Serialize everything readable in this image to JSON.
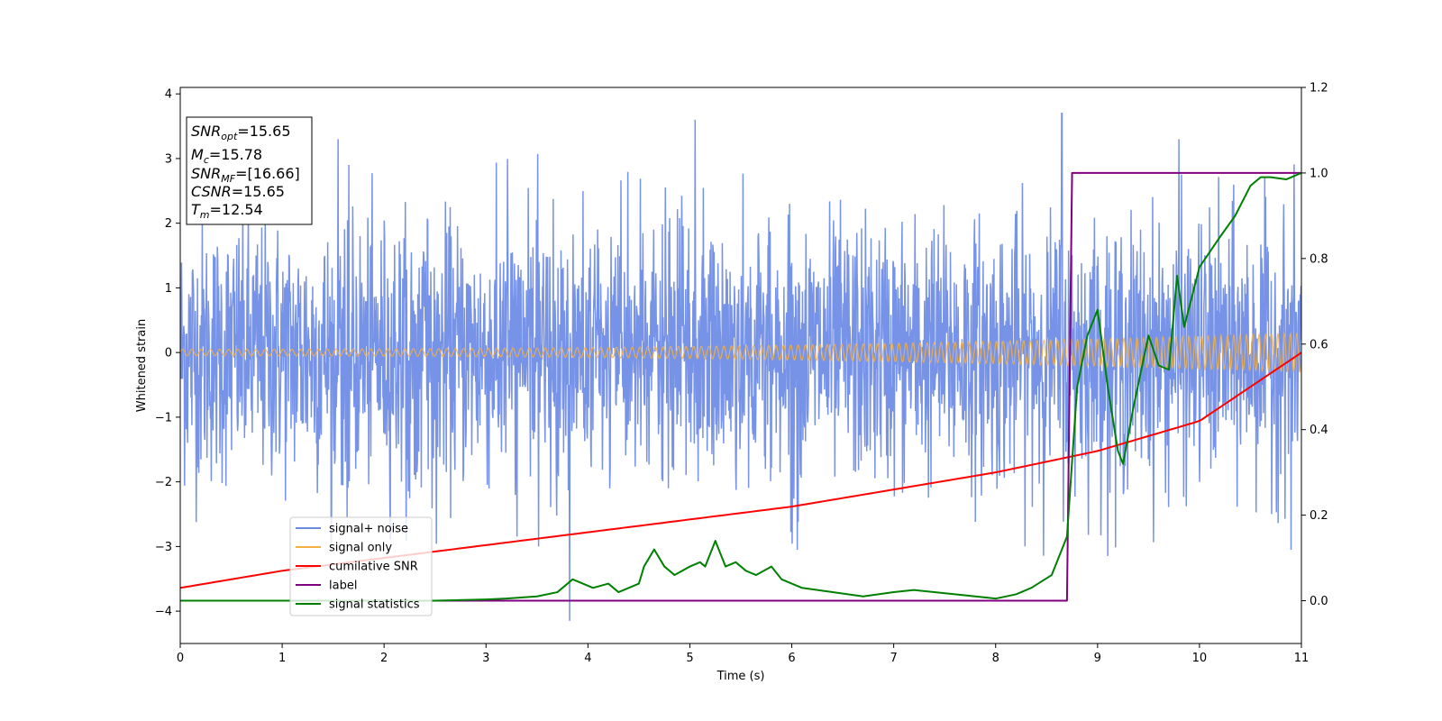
{
  "chart_data": {
    "type": "line",
    "xlabel": "Time (s)",
    "ylabel": "Whitened strain",
    "xlim": [
      0,
      11
    ],
    "ylim_left": [
      -4.5,
      4.1
    ],
    "ylim_right": [
      -0.1,
      1.2
    ],
    "x_ticks": [
      "0",
      "1",
      "2",
      "3",
      "4",
      "5",
      "6",
      "7",
      "8",
      "9",
      "10",
      "11"
    ],
    "y_ticks_left": [
      "4",
      "3",
      "2",
      "1",
      "0",
      "−1",
      "−2",
      "−3",
      "−4"
    ],
    "y_ticks_right": [
      "1.2",
      "1.0",
      "0.8",
      "0.6",
      "0.4",
      "0.2",
      "0.0"
    ],
    "legend_position": "lower-left",
    "grid": false,
    "annotation": {
      "lines": [
        {
          "sym": "SNR",
          "sub": "opt",
          "value": "=15.65"
        },
        {
          "sym": "M",
          "sub": "c",
          "value": "=15.78"
        },
        {
          "sym": "SNR",
          "sub": "MF",
          "value": "=[16.66]"
        },
        {
          "sym": "CSNR",
          "sub": "",
          "value": "=15.65"
        },
        {
          "sym": "T",
          "sub": "m",
          "value": "=12.54"
        }
      ]
    },
    "series": [
      {
        "name": "signal+ noise",
        "axis": "left",
        "color": "#6b8ae6",
        "kind": "noise",
        "envelope_1sigma": 1.0,
        "typical_max": 3.2,
        "notable_points": [
          {
            "x": 5.05,
            "y": 3.6
          },
          {
            "x": 8.65,
            "y": 3.7
          },
          {
            "x": 3.82,
            "y": -4.15
          },
          {
            "x": 1.55,
            "y": 3.3
          },
          {
            "x": 9.8,
            "y": 3.3
          },
          {
            "x": 10.9,
            "y": -3.05
          }
        ]
      },
      {
        "name": "signal only",
        "axis": "left",
        "color": "#f5b041",
        "kind": "chirp",
        "amplitude_start": 0.05,
        "amplitude_end": 0.3,
        "cycles": 120
      },
      {
        "name": "cumilative SNR",
        "axis": "right",
        "color": "#ff0000",
        "x": [
          0,
          1,
          2,
          3,
          4,
          5,
          6,
          7,
          8,
          9,
          10,
          11
        ],
        "y": [
          0.03,
          0.07,
          0.1,
          0.13,
          0.16,
          0.19,
          0.22,
          0.26,
          0.3,
          0.35,
          0.42,
          0.58
        ]
      },
      {
        "name": "label",
        "axis": "right",
        "color": "#800080",
        "x": [
          0,
          8.7,
          8.75,
          11
        ],
        "y": [
          0,
          0,
          1,
          1
        ]
      },
      {
        "name": "signal statistics",
        "axis": "right",
        "color": "#008000",
        "x": [
          0,
          1,
          2,
          2.5,
          3,
          3.2,
          3.5,
          3.7,
          3.85,
          3.95,
          4.05,
          4.2,
          4.3,
          4.5,
          4.55,
          4.65,
          4.75,
          4.85,
          5.0,
          5.1,
          5.15,
          5.25,
          5.35,
          5.45,
          5.55,
          5.65,
          5.8,
          5.9,
          6.0,
          6.1,
          6.4,
          6.7,
          7.0,
          7.2,
          7.6,
          8.0,
          8.2,
          8.35,
          8.55,
          8.7,
          8.8,
          8.9,
          9.0,
          9.1,
          9.2,
          9.25,
          9.35,
          9.5,
          9.6,
          9.7,
          9.78,
          9.85,
          10.0,
          10.2,
          10.35,
          10.5,
          10.6,
          10.7,
          10.85,
          11.0
        ],
        "y": [
          0,
          0.0,
          0.0,
          0.0,
          0.003,
          0.005,
          0.01,
          0.02,
          0.05,
          0.04,
          0.03,
          0.04,
          0.02,
          0.04,
          0.08,
          0.12,
          0.08,
          0.06,
          0.08,
          0.09,
          0.08,
          0.14,
          0.08,
          0.09,
          0.07,
          0.06,
          0.08,
          0.05,
          0.04,
          0.03,
          0.02,
          0.01,
          0.02,
          0.025,
          0.015,
          0.005,
          0.015,
          0.03,
          0.06,
          0.15,
          0.5,
          0.62,
          0.68,
          0.5,
          0.35,
          0.32,
          0.45,
          0.62,
          0.55,
          0.54,
          0.76,
          0.64,
          0.78,
          0.85,
          0.9,
          0.97,
          0.99,
          0.99,
          0.985,
          1.0
        ]
      }
    ]
  }
}
